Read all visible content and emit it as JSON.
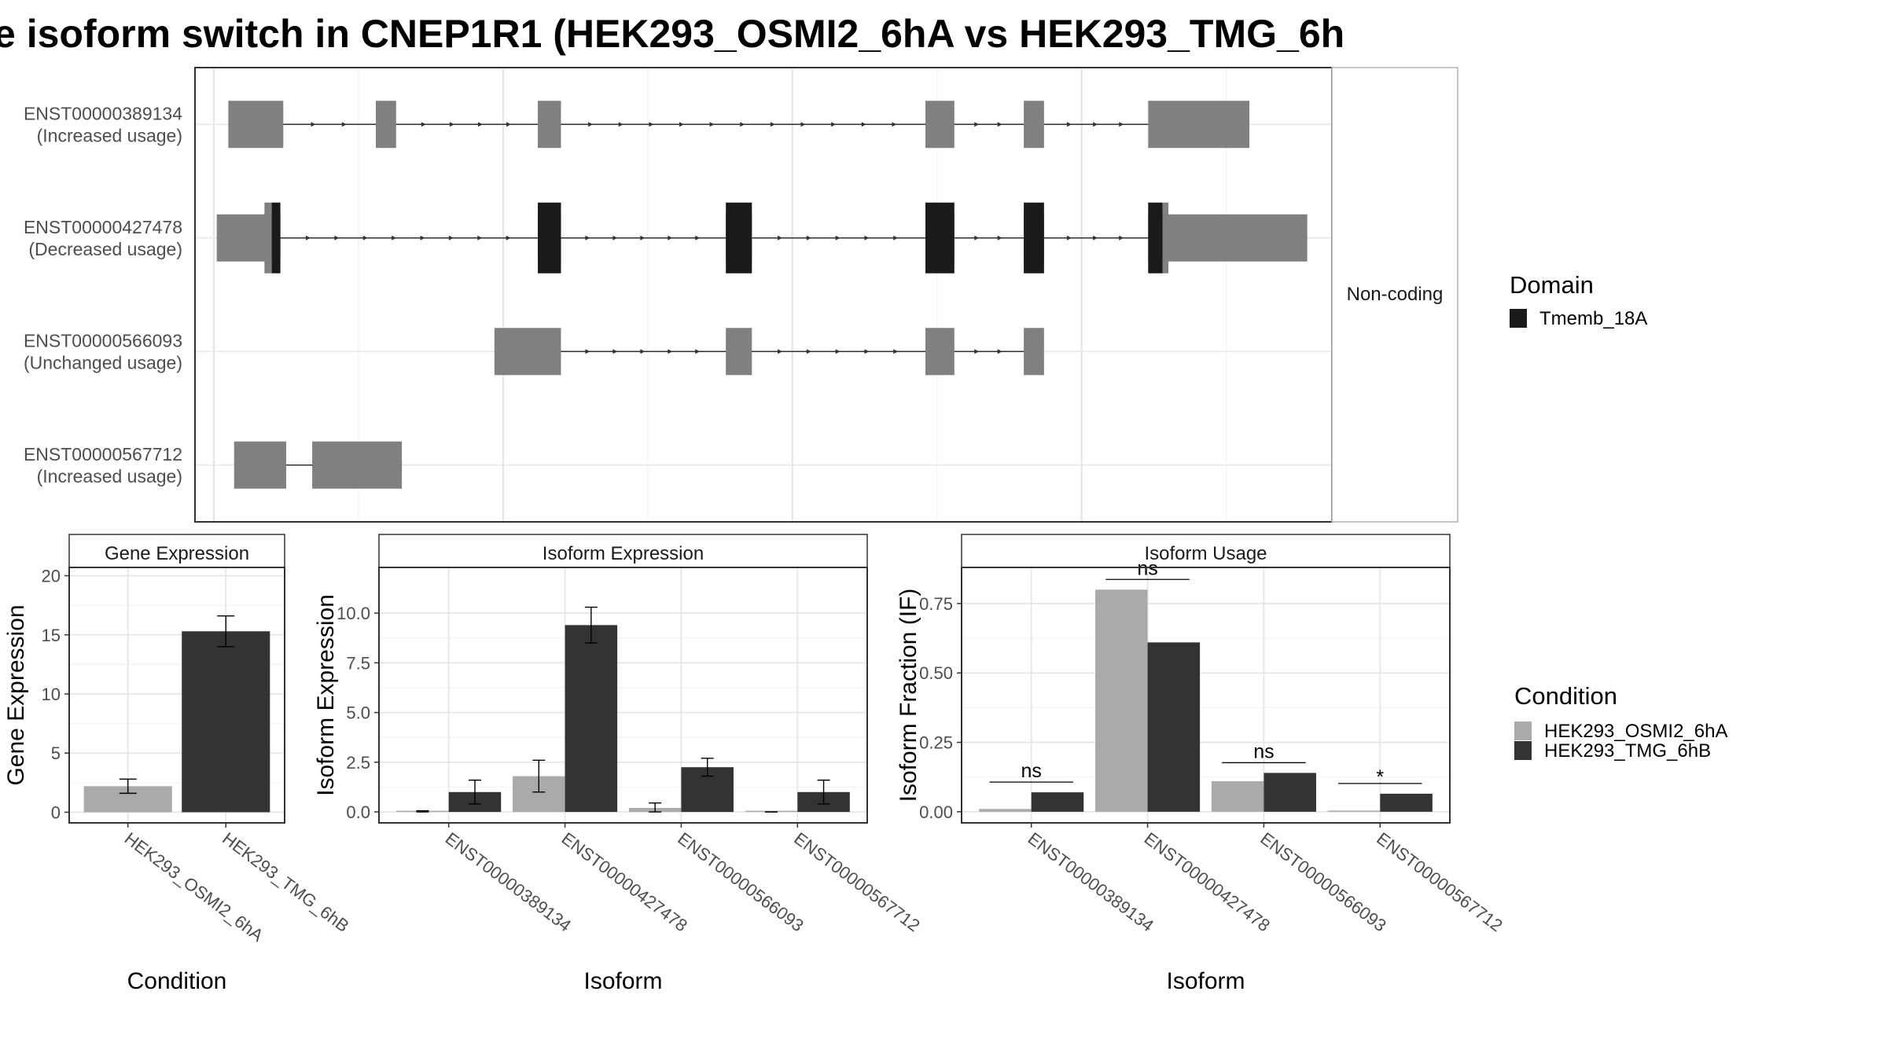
{
  "title": "e isoform switch in CNEP1R1 (HEK293_OSMI2_6hA vs HEK293_TMG_6h",
  "colors": {
    "noncoding": "#808080",
    "domain": "#1a1a1a",
    "cond_a": "#aaaaaa",
    "cond_b": "#333333",
    "panel_border": "#333333",
    "grid": "#ebebeb"
  },
  "transcript_panel": {
    "strip_label": "Non-coding",
    "isoforms": [
      {
        "id": "ENST00000389134",
        "usage": "(Increased usage)",
        "exons": [
          [
            10,
            48
          ],
          [
            112,
            126
          ],
          [
            224,
            240
          ],
          [
            492,
            512
          ],
          [
            560,
            574
          ],
          [
            646,
            716
          ]
        ],
        "domains": [],
        "arrow_direction": "right"
      },
      {
        "id": "ENST00000427478",
        "usage": "(Decreased usage)",
        "exons": [
          [
            2,
            46
          ],
          [
            224,
            240
          ],
          [
            354,
            372
          ],
          [
            492,
            512
          ],
          [
            560,
            574
          ],
          [
            646,
            756
          ]
        ],
        "domains": [
          [
            40,
            46
          ],
          [
            224,
            240
          ],
          [
            354,
            372
          ],
          [
            492,
            512
          ],
          [
            560,
            574
          ],
          [
            646,
            656
          ]
        ],
        "arrow_direction": "right"
      },
      {
        "id": "ENST00000566093",
        "usage": "(Unchanged usage)",
        "exons": [
          [
            194,
            240
          ],
          [
            354,
            372
          ],
          [
            492,
            512
          ],
          [
            560,
            574
          ]
        ],
        "domains": [],
        "arrow_direction": "right"
      },
      {
        "id": "ENST00000567712",
        "usage": "(Increased usage)",
        "exons": [
          [
            14,
            50
          ],
          [
            68,
            130
          ]
        ],
        "domains": [],
        "arrow_direction": "none"
      }
    ]
  },
  "domain_legend": {
    "title": "Domain",
    "items": [
      {
        "label": "Tmemb_18A",
        "color": "#1a1a1a"
      }
    ]
  },
  "condition_legend": {
    "title": "Condition",
    "items": [
      {
        "label": "HEK293_OSMI2_6hA",
        "color": "#aaaaaa"
      },
      {
        "label": "HEK293_TMG_6hB",
        "color": "#333333"
      }
    ]
  },
  "chart_data": [
    {
      "type": "bar",
      "title": "Gene Expression",
      "xlabel": "Condition",
      "ylabel": "Gene Expression",
      "ylim": [
        -0.9,
        20.7
      ],
      "yticks": [
        0,
        5,
        10,
        15,
        20
      ],
      "ytick_labels": [
        "0",
        "5",
        "10",
        "15",
        "20"
      ],
      "categories": [
        "HEK293_OSMI2_6hA",
        "HEK293_TMG_6hB"
      ],
      "values": [
        2.2,
        15.3
      ],
      "errors": [
        [
          1.6,
          2.8
        ],
        [
          14.0,
          16.6
        ]
      ],
      "grid": true
    },
    {
      "type": "bar",
      "title": "Isoform Expression",
      "xlabel": "Isoform",
      "ylabel": "Isoform Expression",
      "ylim": [
        -0.55,
        12.3
      ],
      "yticks": [
        0,
        2.5,
        5,
        7.5,
        10
      ],
      "ytick_labels": [
        "0.0",
        "2.5",
        "5.0",
        "7.5",
        "10.0"
      ],
      "categories": [
        "ENST00000389134",
        "ENST00000427478",
        "ENST00000566093",
        "ENST00000567712"
      ],
      "series": [
        {
          "name": "HEK293_OSMI2_6hA",
          "values": [
            0.03,
            1.8,
            0.2,
            0.0
          ],
          "errors": [
            [
              0.0,
              0.06
            ],
            [
              1.0,
              2.6
            ],
            [
              0.0,
              0.45
            ],
            [
              0.0,
              0.0
            ]
          ]
        },
        {
          "name": "HEK293_TMG_6hB",
          "values": [
            1.0,
            9.4,
            2.25,
            1.0
          ],
          "errors": [
            [
              0.4,
              1.6
            ],
            [
              8.5,
              10.3
            ],
            [
              1.8,
              2.7
            ],
            [
              0.4,
              1.6
            ]
          ]
        }
      ],
      "grid": true
    },
    {
      "type": "bar",
      "title": "Isoform Usage",
      "xlabel": "Isoform",
      "ylabel": "Isoform Fraction (IF)",
      "ylim": [
        -0.04,
        0.88
      ],
      "yticks": [
        0,
        0.25,
        0.5,
        0.75
      ],
      "ytick_labels": [
        "0.00",
        "0.25",
        "0.50",
        "0.75"
      ],
      "categories": [
        "ENST00000389134",
        "ENST00000427478",
        "ENST00000566093",
        "ENST00000567712"
      ],
      "series": [
        {
          "name": "HEK293_OSMI2_6hA",
          "values": [
            0.01,
            0.8,
            0.11,
            0.0
          ]
        },
        {
          "name": "HEK293_TMG_6hB",
          "values": [
            0.07,
            0.61,
            0.14,
            0.065
          ]
        }
      ],
      "significance": [
        "ns",
        "ns",
        "ns",
        "*"
      ],
      "grid": true
    }
  ]
}
